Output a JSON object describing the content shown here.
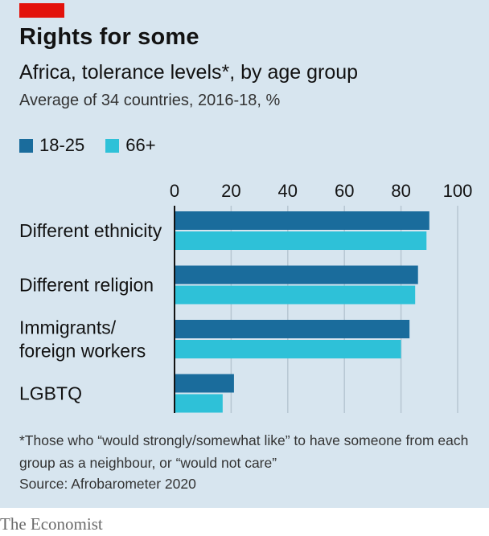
{
  "title": "Rights for some",
  "subtitle": "Africa, tolerance levels*, by age group",
  "subsubtitle": "Average of 34 countries, 2016-18, %",
  "footnote": "*Those who “would strongly/somewhat like” to have someone from each group as a neighbour,  or “would not care”",
  "source": "Source: Afrobarometer 2020",
  "brand": "The Economist",
  "colors": {
    "background": "#d7e5ef",
    "series_18_25": "#1a6c9c",
    "series_66_plus": "#2ec1d8",
    "gridline": "#b7c6d2",
    "axis": "#121212",
    "accent_red": "#e3120b"
  },
  "chart_data": {
    "type": "bar",
    "orientation": "horizontal",
    "categories": [
      "Different ethnicity",
      "Different religion",
      "Immigrants/\nforeign workers",
      "LGBTQ"
    ],
    "series": [
      {
        "name": "18-25",
        "values": [
          90,
          86,
          83,
          21
        ]
      },
      {
        "name": "66+",
        "values": [
          89,
          85,
          80,
          17
        ]
      }
    ],
    "xlim": [
      0,
      100
    ],
    "xticks": [
      "0",
      "20",
      "40",
      "60",
      "80",
      "100"
    ],
    "grid": true,
    "legend": "top-left"
  }
}
